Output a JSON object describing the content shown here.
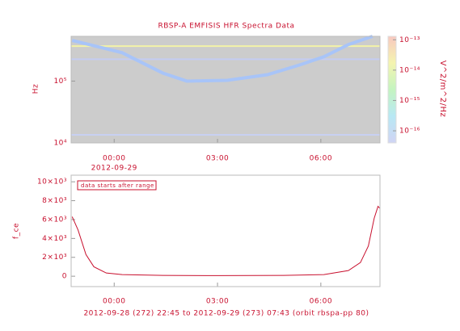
{
  "chart_data": [
    {
      "type": "spectrogram",
      "title": "RBSP-A EMFISIS HFR Spectra Data",
      "ylabel": "Hz",
      "xlim": [
        -1.25,
        7.717
      ],
      "xticks": [
        {
          "value": 0,
          "label": "00:00"
        },
        {
          "value": 3,
          "label": "03:00"
        },
        {
          "value": 6,
          "label": "06:00"
        }
      ],
      "date_label": "2012-09-29",
      "yscale": "log",
      "ylim": [
        10000,
        530000
      ],
      "yticks": [
        {
          "value": 10000,
          "label": "10⁴"
        },
        {
          "value": 100000,
          "label": "10⁵"
        }
      ],
      "background": "#cccccc",
      "series": [
        {
          "color": "#a8c4f8",
          "x": [
            -1.22,
            0.23,
            1.41,
            2.11,
            3.28,
            4.45,
            5.39,
            6.09,
            6.8,
            7.5
          ],
          "values": [
            455000,
            288000,
            135000,
            100000,
            103000,
            127000,
            183000,
            248000,
            390000,
            530000
          ]
        }
      ],
      "lines": [
        {
          "value": 368000,
          "color": "#f2f2a8"
        },
        {
          "value": 226000,
          "color": "#c4ccf2"
        },
        {
          "value": 13500,
          "color": "#c8d0f2"
        }
      ],
      "clabel": "V^2/m^2/Hz",
      "cscale": "log",
      "clim": [
        4e-17,
        1.3e-13
      ],
      "cticks": [
        {
          "value": 1e-13,
          "label": "10⁻¹³"
        },
        {
          "value": 1e-14,
          "label": "10⁻¹⁴"
        },
        {
          "value": 1e-15,
          "label": "10⁻¹⁵"
        },
        {
          "value": 1e-16,
          "label": "10⁻¹⁶"
        }
      ],
      "colormap": [
        "#d0d4f4",
        "#b8e8f4",
        "#c4f4c0",
        "#f4f4b0",
        "#f8c8c0"
      ]
    },
    {
      "type": "line",
      "ylabel": "f_ce",
      "annotation": "data starts after range",
      "footer": "2012-09-28 (272) 22:45 to 2012-09-29 (273) 07:43 (orbit rbspa-pp 80)",
      "xlim": [
        -1.25,
        7.717
      ],
      "xticks": [
        {
          "value": 0,
          "label": "00:00"
        },
        {
          "value": 3,
          "label": "03:00"
        },
        {
          "value": 6,
          "label": "06:00"
        }
      ],
      "ylim": [
        -1100,
        10700
      ],
      "yticks": [
        0,
        {
          "value": 2000,
          "label": "2×10³"
        },
        {
          "value": 4000,
          "label": "4×10³"
        },
        {
          "value": 6000,
          "label": "6×10³"
        },
        {
          "value": 8000,
          "label": "8×10³"
        },
        {
          "value": 10000,
          "label": "10×10³"
        }
      ],
      "color": "#c8102e",
      "x": [
        -1.22,
        -1.05,
        -0.82,
        -0.59,
        -0.23,
        0.23,
        1.41,
        3.05,
        4.92,
        6.09,
        6.8,
        7.15,
        7.38,
        7.55,
        7.66,
        7.71
      ],
      "values": [
        6300,
        4900,
        2300,
        1000,
        340,
        170,
        85,
        60,
        85,
        170,
        600,
        1450,
        3200,
        6150,
        7400,
        7200
      ]
    }
  ]
}
